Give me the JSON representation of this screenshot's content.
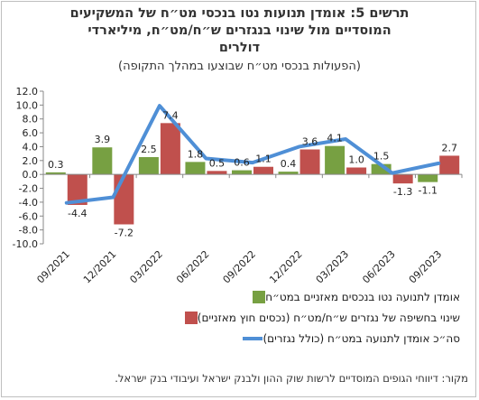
{
  "title_line1": "תרשים 5: אומדן תנועות נטו בנכסי מט״ח של המשקיעים",
  "title_line2": "המוסדיים מול שינוי בנגזרים ש״ח/מט״ח, מיליארדי",
  "title_line3": "דולרים",
  "subtitle": "(הפעולות בנכסי מט״ח שבוצעו במהלך התקופה)",
  "source": "מקור: דיווחי הגופים המוסדיים לרשות שוק ההון ולבנק ישראל ועיבודי בנק ישראל.",
  "colors": {
    "green": "#77a042",
    "red": "#c0504d",
    "blue": "#4f8fd6",
    "grid": "#d9d9d9"
  },
  "chart_data": {
    "type": "bar",
    "ylim": [
      -10,
      12
    ],
    "yticks": [
      "12.0",
      "10.0",
      "8.0",
      "6.0",
      "4.0",
      "2.0",
      "0.0",
      "-2.0",
      "-4.0",
      "-6.0",
      "-8.0",
      "-10.0"
    ],
    "xtick_labels": [
      "09/2021",
      "12/2021",
      "03/2022",
      "06/2022",
      "09/2022",
      "12/2022",
      "03/2023",
      "06/2023",
      "09/2023"
    ],
    "series": [
      {
        "name": "אומדן לתנועה נטו בנכסים מאזניים במט״ח",
        "type": "bar",
        "color": "#77a042",
        "values": [
          0.3,
          3.9,
          2.5,
          1.8,
          0.6,
          0.4,
          4.1,
          1.5,
          -1.1
        ]
      },
      {
        "name": "שינוי בחשיפה של נגזרים ש״ח/מט״ח (נכסים חוץ מאזניים)",
        "type": "bar",
        "color": "#c0504d",
        "values": [
          -4.4,
          -7.2,
          7.4,
          0.5,
          1.1,
          3.6,
          1.0,
          -1.3,
          2.7
        ]
      },
      {
        "name": "סה״כ אומדן לתנועה במט״ח (כולל נגזרים)",
        "type": "line",
        "color": "#4f8fd6",
        "values": [
          -4.1,
          -3.3,
          9.9,
          2.3,
          1.7,
          4.0,
          5.1,
          0.2,
          1.6
        ]
      }
    ]
  }
}
